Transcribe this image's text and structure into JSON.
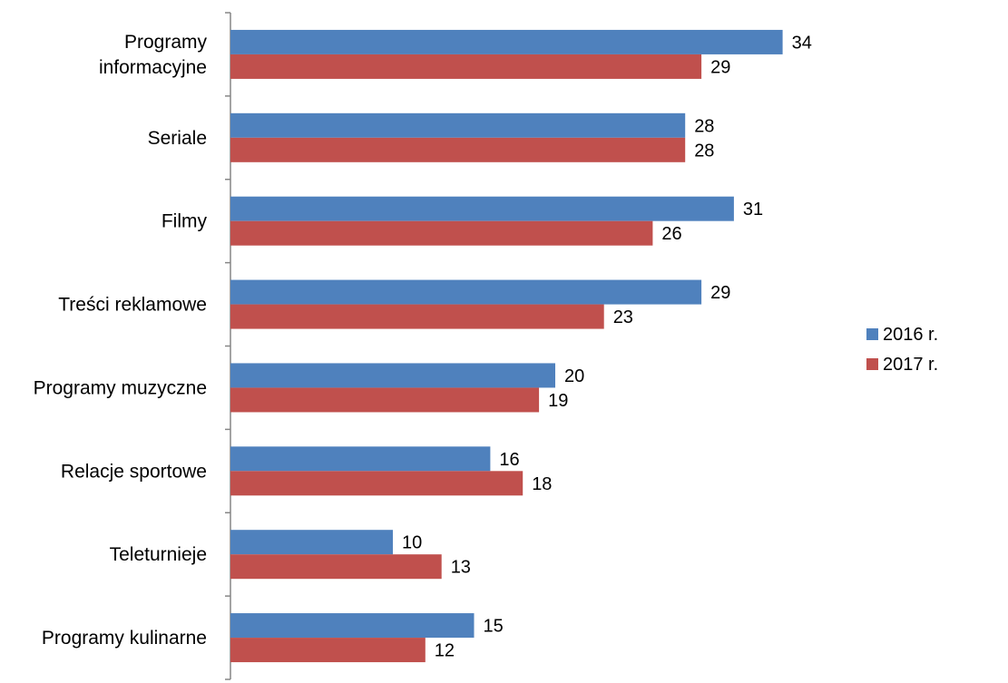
{
  "chart_data": {
    "type": "bar",
    "orientation": "horizontal",
    "categories": [
      [
        "Programy",
        "informacyjne"
      ],
      [
        "Seriale"
      ],
      [
        "Filmy"
      ],
      [
        "Treści reklamowe"
      ],
      [
        "Programy muzyczne"
      ],
      [
        "Relacje sportowe"
      ],
      [
        "Teleturnieje"
      ],
      [
        "Programy kulinarne"
      ]
    ],
    "series": [
      {
        "name": "2016 r.",
        "color": "#4F81BD",
        "values": [
          34,
          28,
          31,
          29,
          20,
          16,
          10,
          15
        ]
      },
      {
        "name": "2017 r.",
        "color": "#C0504D",
        "values": [
          29,
          28,
          26,
          23,
          19,
          18,
          13,
          12
        ]
      }
    ],
    "xlim": [
      0,
      34
    ],
    "grid": false,
    "legend": "right",
    "data_labels": true
  }
}
